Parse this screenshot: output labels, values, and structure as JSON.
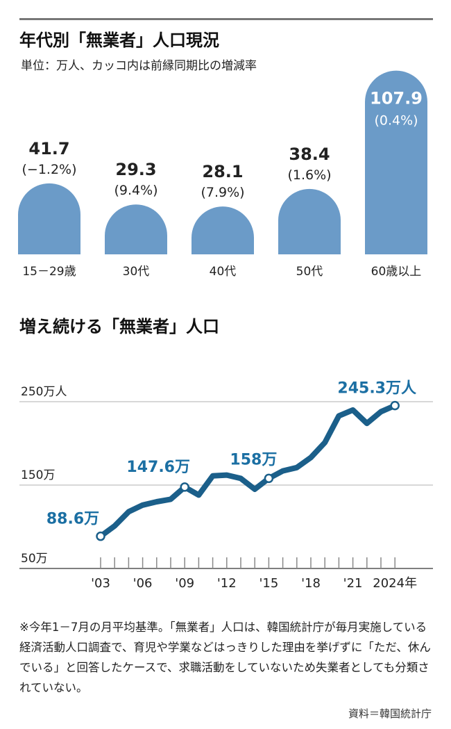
{
  "chart_data": [
    {
      "type": "bar",
      "title": "年代別「無業者」人口現況",
      "subtitle": "単位：万人、カッコ内は前縁同期比の増減率",
      "categories": [
        "15－29歳",
        "30代",
        "40代",
        "50代",
        "60歳以上"
      ],
      "values": [
        41.7,
        29.3,
        28.1,
        38.4,
        107.9
      ],
      "value_labels": [
        "41.7",
        "29.3",
        "28.1",
        "38.4",
        "107.9"
      ],
      "change_labels": [
        "(−1.2%)",
        "(9.4%)",
        "(7.9%)",
        "(1.6%)",
        "(0.4%)"
      ],
      "colors": {
        "bar": "#6b9bc8",
        "value_text_light": "#ffffff",
        "value_text_dark": "#222222"
      },
      "grid": false
    },
    {
      "type": "line",
      "title": "増え続ける「無業者」人口",
      "x": [
        2003,
        2004,
        2005,
        2006,
        2007,
        2008,
        2009,
        2010,
        2011,
        2012,
        2013,
        2014,
        2015,
        2016,
        2017,
        2018,
        2019,
        2020,
        2021,
        2022,
        2023,
        2024
      ],
      "values": [
        88.6,
        101,
        118,
        126,
        130,
        133,
        147.6,
        138,
        161,
        162,
        158,
        145,
        158,
        167,
        171,
        183,
        201,
        233,
        240,
        224,
        238,
        245.3
      ],
      "ylim": [
        50,
        250
      ],
      "yticks": [
        {
          "value": 250,
          "label": "250万人"
        },
        {
          "value": 150,
          "label": "150万"
        },
        {
          "value": 50,
          "label": "50万"
        }
      ],
      "xticks_labeled": [
        {
          "x": 2003,
          "label": "'03"
        },
        {
          "x": 2006,
          "label": "'06"
        },
        {
          "x": 2009,
          "label": "'09"
        },
        {
          "x": 2012,
          "label": "'12"
        },
        {
          "x": 2015,
          "label": "'15"
        },
        {
          "x": 2018,
          "label": "'18"
        },
        {
          "x": 2021,
          "label": "'21"
        },
        {
          "x": 2024,
          "label": "2024年"
        }
      ],
      "annotations": [
        {
          "x": 2003,
          "value": 88.6,
          "label": "88.6万"
        },
        {
          "x": 2009,
          "value": 147.6,
          "label": "147.6万"
        },
        {
          "x": 2015,
          "value": 158,
          "label": "158万"
        },
        {
          "x": 2024,
          "value": 245.3,
          "label": "245.3万人"
        }
      ],
      "colors": {
        "line": "#1b5f8a",
        "annotation": "#1b6fa3",
        "grid": "#cccccc",
        "axis": "#555555"
      },
      "grid": true
    }
  ],
  "note": "※今年1－7月の月平均基準。「無業者」人口は、韓国統計庁が毎月実施している経済活動人口調査で、育児や学業などはっきりした理由を挙げずに「ただ、休んでいる」と回答したケースで、求職活動をしていないため失業者としても分類されていない。",
  "source": "資料＝韓国統計庁"
}
